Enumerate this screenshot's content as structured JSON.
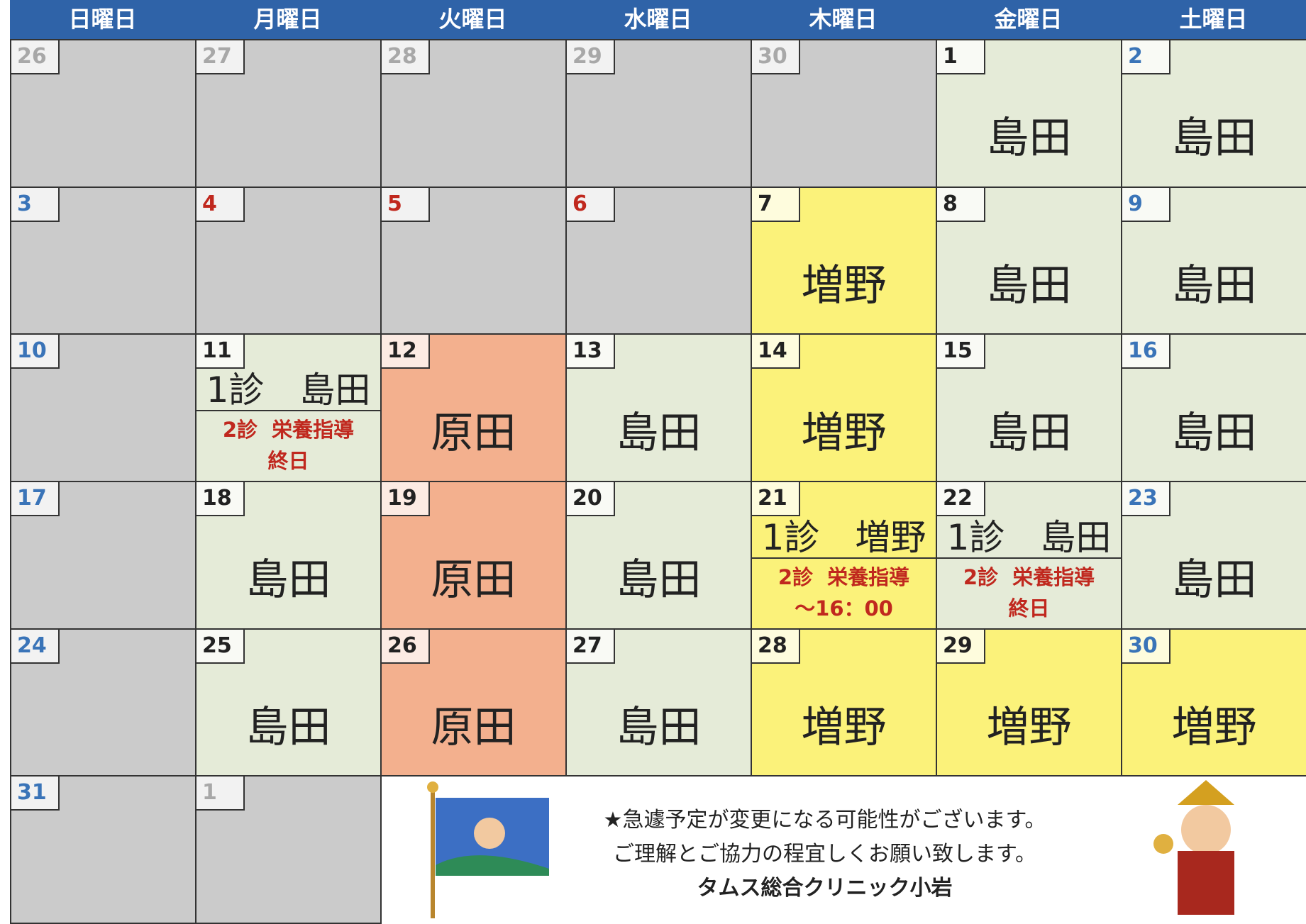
{
  "header": {
    "days": [
      "日曜日",
      "月曜日",
      "火曜日",
      "水曜日",
      "木曜日",
      "金曜日",
      "土曜日"
    ],
    "color": "#2f63a8"
  },
  "weeks": [
    {
      "cells": [
        {
          "day": "26",
          "day_color": "#a8a8a8",
          "color": "#cbcbcb"
        },
        {
          "day": "27",
          "day_color": "#a8a8a8",
          "color": "#cbcbcb"
        },
        {
          "day": "28",
          "day_color": "#a8a8a8",
          "color": "#cbcbcb"
        },
        {
          "day": "29",
          "day_color": "#a8a8a8",
          "color": "#cbcbcb"
        },
        {
          "day": "30",
          "day_color": "#a8a8a8",
          "color": "#cbcbcb"
        },
        {
          "day": "1",
          "day_color": "#222",
          "color": "#e5ebd8",
          "doctor": "島田"
        },
        {
          "day": "2",
          "day_color": "#3a74b8",
          "color": "#e5ebd8",
          "doctor": "島田"
        }
      ]
    },
    {
      "cells": [
        {
          "day": "3",
          "day_color": "#3a74b8",
          "color": "#cbcbcb"
        },
        {
          "day": "4",
          "day_color": "#c0281e",
          "color": "#cbcbcb"
        },
        {
          "day": "5",
          "day_color": "#c0281e",
          "color": "#cbcbcb"
        },
        {
          "day": "6",
          "day_color": "#c0281e",
          "color": "#cbcbcb"
        },
        {
          "day": "7",
          "day_color": "#222",
          "color": "#fbf27a",
          "doctor": "増野"
        },
        {
          "day": "8",
          "day_color": "#222",
          "color": "#e5ebd8",
          "doctor": "島田"
        },
        {
          "day": "9",
          "day_color": "#3a74b8",
          "color": "#e5ebd8",
          "doctor": "島田"
        }
      ]
    },
    {
      "cells": [
        {
          "day": "10",
          "day_color": "#3a74b8",
          "color": "#cbcbcb"
        },
        {
          "day": "11",
          "day_color": "#222",
          "color": "#e5ebd8",
          "slot1": "1診　島田",
          "slot2": [
            "2診  栄養指導",
            "終日"
          ]
        },
        {
          "day": "12",
          "day_color": "#222",
          "color": "#f3b08e",
          "doctor": "原田"
        },
        {
          "day": "13",
          "day_color": "#222",
          "color": "#e5ebd8",
          "doctor": "島田"
        },
        {
          "day": "14",
          "day_color": "#222",
          "color": "#fbf27a",
          "doctor": "増野"
        },
        {
          "day": "15",
          "day_color": "#222",
          "color": "#e5ebd8",
          "doctor": "島田"
        },
        {
          "day": "16",
          "day_color": "#3a74b8",
          "color": "#e5ebd8",
          "doctor": "島田"
        }
      ]
    },
    {
      "cells": [
        {
          "day": "17",
          "day_color": "#3a74b8",
          "color": "#cbcbcb"
        },
        {
          "day": "18",
          "day_color": "#222",
          "color": "#e5ebd8",
          "doctor": "島田"
        },
        {
          "day": "19",
          "day_color": "#222",
          "color": "#f3b08e",
          "doctor": "原田"
        },
        {
          "day": "20",
          "day_color": "#222",
          "color": "#e5ebd8",
          "doctor": "島田"
        },
        {
          "day": "21",
          "day_color": "#222",
          "color": "#fbf27a",
          "slot1": "1診　増野",
          "slot2": [
            "2診  栄養指導",
            "～16：00"
          ]
        },
        {
          "day": "22",
          "day_color": "#222",
          "color": "#e5ebd8",
          "slot1": "1診　島田",
          "slot2": [
            "2診  栄養指導",
            "終日"
          ]
        },
        {
          "day": "23",
          "day_color": "#3a74b8",
          "color": "#e5ebd8",
          "doctor": "島田"
        }
      ]
    },
    {
      "cells": [
        {
          "day": "24",
          "day_color": "#3a74b8",
          "color": "#cbcbcb"
        },
        {
          "day": "25",
          "day_color": "#222",
          "color": "#e5ebd8",
          "doctor": "島田"
        },
        {
          "day": "26",
          "day_color": "#222",
          "color": "#f3b08e",
          "doctor": "原田"
        },
        {
          "day": "27",
          "day_color": "#222",
          "color": "#e5ebd8",
          "doctor": "島田"
        },
        {
          "day": "28",
          "day_color": "#222",
          "color": "#fbf27a",
          "doctor": "増野"
        },
        {
          "day": "29",
          "day_color": "#222",
          "color": "#fbf27a",
          "doctor": "増野"
        },
        {
          "day": "30",
          "day_color": "#3a74b8",
          "color": "#fbf27a",
          "doctor": "増野"
        }
      ]
    },
    {
      "cells": [
        {
          "day": "31",
          "day_color": "#3a74b8",
          "color": "#cbcbcb"
        },
        {
          "day": "1",
          "day_color": "#a8a8a8",
          "color": "#cbcbcb"
        }
      ]
    }
  ],
  "notice": {
    "lines": [
      "★急遽予定が変更になる可能性がございます。",
      "ご理解とご協力の程宜しくお願い致します。"
    ],
    "clinic": "タムス総合クリニック小岩"
  }
}
